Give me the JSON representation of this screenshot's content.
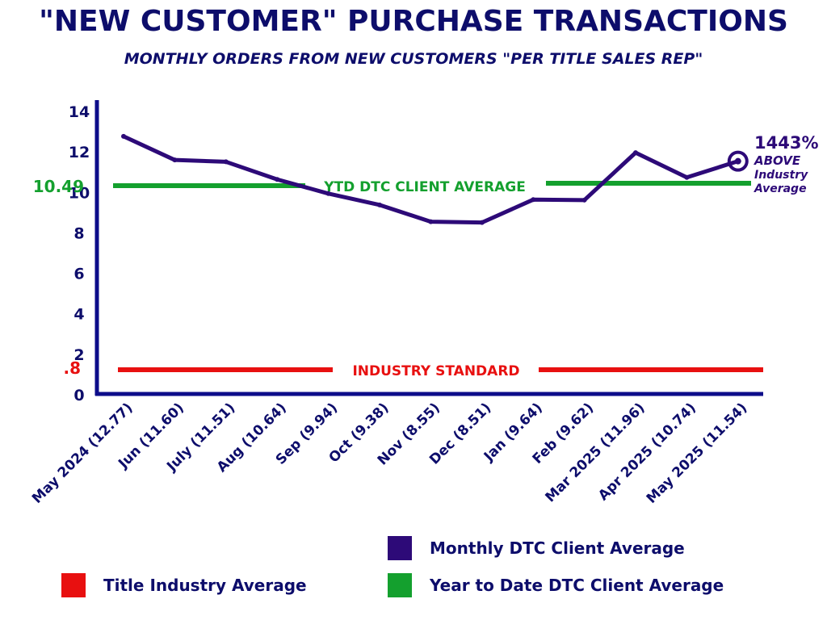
{
  "chart_data": {
    "type": "line",
    "title": "\"NEW CUSTOMER\" PURCHASE TRANSACTIONS",
    "subtitle": "MONTHLY ORDERS FROM NEW CUSTOMERS \"PER TITLE SALES REP\"",
    "categories": [
      "May 2024 (12.77)",
      "Jun (11.60)",
      "July (11.51)",
      "Aug (10.64)",
      "Sep (9.94)",
      "Oct (9.38)",
      "Nov (8.55)",
      "Dec (8.51)",
      "Jan (9.64)",
      "Feb (9.62)",
      "Mar 2025 (11.96)",
      "Apr 2025 (10.74)",
      "May 2025 (11.54)"
    ],
    "series": [
      {
        "name": "Monthly DTC Client Average",
        "values": [
          12.77,
          11.6,
          11.51,
          10.64,
          9.94,
          9.38,
          8.55,
          8.51,
          9.64,
          9.62,
          11.96,
          10.74,
          11.54
        ],
        "color": "#2d0a78"
      }
    ],
    "reference_lines": {
      "ytd": {
        "value": 10.49,
        "value_label": "10.49",
        "label": "YTD DTC CLIENT AVERAGE",
        "color": "#14a02e"
      },
      "industry": {
        "value": 0.8,
        "value_label": ".8",
        "label": "INDUSTRY STANDARD",
        "color": "#e81010"
      }
    },
    "yticks": [
      0,
      2,
      4,
      6,
      8,
      10,
      12,
      14
    ],
    "ylim": [
      0,
      14
    ],
    "axis_color": "#0d0d8a",
    "callout": {
      "percent": "1443%",
      "line1": "ABOVE",
      "line2": "Industry",
      "line3": "Average"
    },
    "legend": [
      {
        "label": "Monthly DTC Client Average",
        "color": "#2d0a78"
      },
      {
        "label": "Title Industry Average",
        "color": "#e81010"
      },
      {
        "label": "Year to Date DTC Client Average",
        "color": "#14a02e"
      }
    ]
  }
}
